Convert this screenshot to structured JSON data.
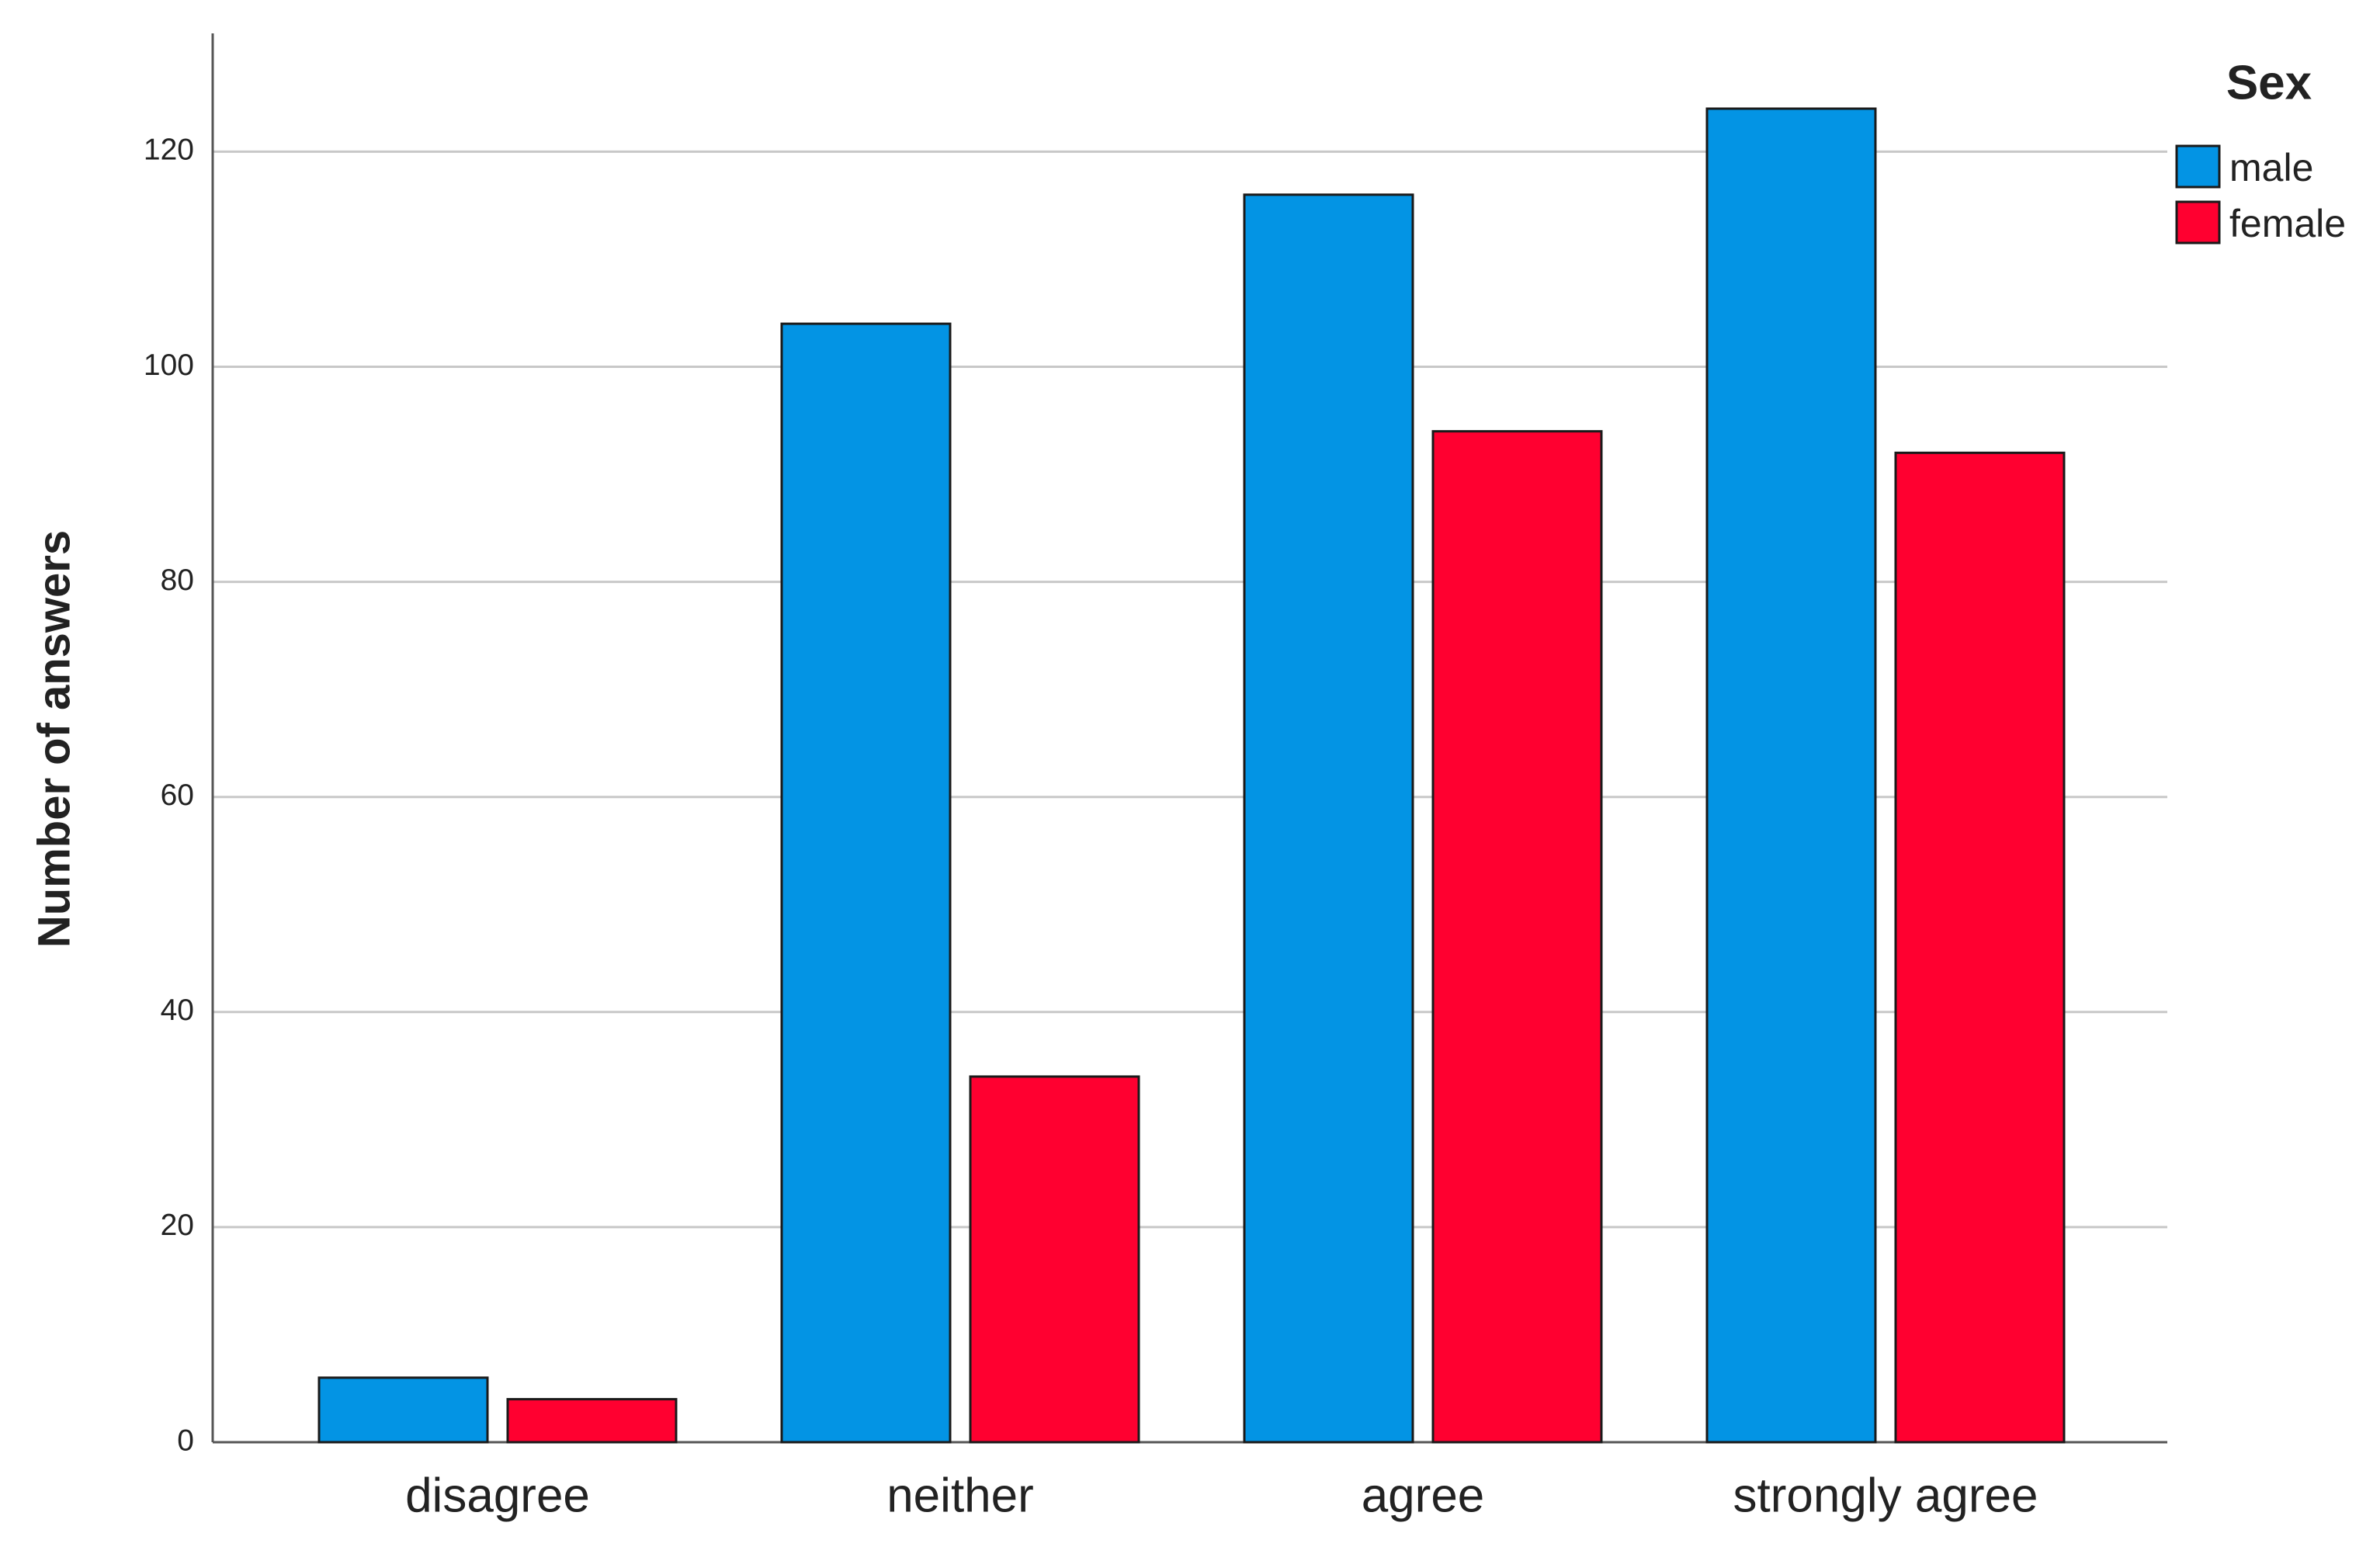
{
  "chart_data": {
    "type": "bar",
    "y_label": "Number of answers",
    "legend_title": "Sex",
    "legend_position": "right",
    "grid": true,
    "categories": [
      "disagree",
      "neither",
      "agree",
      "strongly agree"
    ],
    "series": [
      {
        "name": "male",
        "color": "#0394e4",
        "values": [
          6,
          104,
          116,
          124
        ]
      },
      {
        "name": "female",
        "color": "#ff0030",
        "values": [
          4,
          34,
          94,
          92
        ]
      }
    ],
    "ylim": [
      0,
      131
    ],
    "yticks": [
      0,
      20,
      40,
      60,
      80,
      100,
      120
    ]
  }
}
